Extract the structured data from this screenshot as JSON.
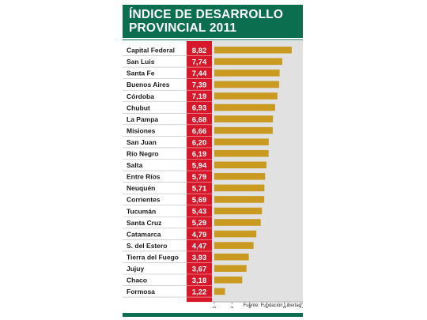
{
  "header": {
    "title_line1": "ÍNDICE DE DESARROLLO",
    "title_line2": "PROVINCIAL 2011"
  },
  "source": "Fuente: Fundación Libertad",
  "colors": {
    "header_bg": "#0b6e4f",
    "value_bg": "#d7182a",
    "bar": "#c99a1f",
    "plot_bg": "#e1e1e1"
  },
  "chart_data": {
    "type": "bar",
    "orientation": "horizontal",
    "title": "ÍNDICE DE DESARROLLO PROVINCIAL 2011",
    "categories": [
      "Capital Federal",
      "San Luis",
      "Santa Fe",
      "Buenos Aires",
      "Córdoba",
      "Chubut",
      "La Pampa",
      "Misiones",
      "San Juan",
      "Río Negro",
      "Salta",
      "Entre Ríos",
      "Neuquén",
      "Corrientes",
      "Tucumán",
      "Santa Cruz",
      "Catamarca",
      "S. del Estero",
      "Tierra del Fuego",
      "Jujuy",
      "Chaco",
      "Formosa"
    ],
    "values": [
      8.82,
      7.74,
      7.44,
      7.39,
      7.19,
      6.93,
      6.68,
      6.66,
      6.2,
      6.19,
      5.94,
      5.79,
      5.71,
      5.69,
      5.43,
      5.29,
      4.79,
      4.47,
      3.93,
      3.67,
      3.18,
      1.22
    ],
    "value_labels": [
      "8,82",
      "7,74",
      "7,44",
      "7,39",
      "7,19",
      "6,93",
      "6,68",
      "6,66",
      "6,20",
      "6,19",
      "5,94",
      "5,79",
      "5,71",
      "5,69",
      "5,43",
      "5,29",
      "4,79",
      "4,47",
      "3,93",
      "3,67",
      "3,18",
      "1,22"
    ],
    "xlim": [
      0,
      10
    ],
    "xticks": [
      0,
      2,
      4,
      6,
      8,
      10
    ],
    "xtick_labels": [
      "0",
      "2",
      "4",
      "6",
      "8",
      "10"
    ],
    "xlabel": "",
    "ylabel": "",
    "grid": false,
    "legend": "none"
  }
}
